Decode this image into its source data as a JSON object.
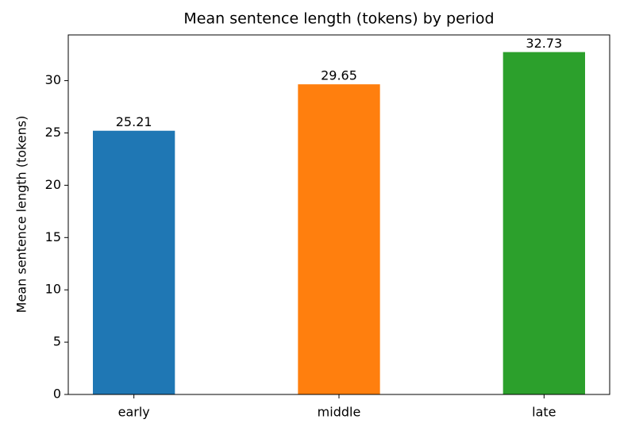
{
  "chart_data": {
    "type": "bar",
    "title": "Mean sentence length (tokens) by period",
    "y_label": "Mean sentence length (tokens)",
    "categories": [
      "early",
      "middle",
      "late"
    ],
    "values": [
      25.21,
      29.65,
      32.73
    ],
    "colors": [
      "#1f77b4",
      "#ff7f0e",
      "#2ca02c"
    ],
    "ylim": [
      0,
      34.37
    ],
    "yticks": [
      0,
      5,
      10,
      15,
      20,
      25,
      30
    ],
    "grid": false
  }
}
